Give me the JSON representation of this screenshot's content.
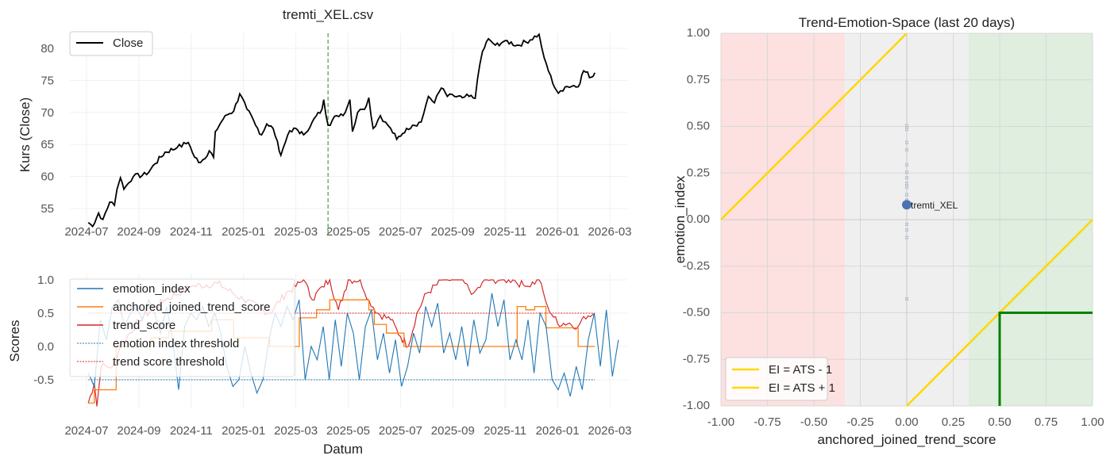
{
  "chart_data": [
    {
      "type": "line",
      "title": "tremti_XEL.csv",
      "xlabel": "",
      "ylabel": "Kurs (Close)",
      "x_ticks": [
        "2024-07",
        "2024-09",
        "2024-11",
        "2025-01",
        "2025-03",
        "2025-05",
        "2025-07",
        "2025-09",
        "2025-11",
        "2026-01",
        "2026-03"
      ],
      "y_ticks": [
        55,
        60,
        65,
        70,
        75,
        80
      ],
      "ylim": [
        51,
        83.5
      ],
      "grid": true,
      "legend": {
        "position": "top-left",
        "entries": [
          "Close"
        ]
      },
      "marker_line": {
        "date": "2025-04-08",
        "style": "dashed",
        "color": "#4c9a4c"
      },
      "series": [
        {
          "name": "Close",
          "color": "#000000",
          "points": [
            [
              "2024-07-03",
              52.8
            ],
            [
              "2024-07-08",
              52.2
            ],
            [
              "2024-07-15",
              54.3
            ],
            [
              "2024-07-20",
              53.3
            ],
            [
              "2024-07-28",
              56
            ],
            [
              "2024-08-03",
              55.5
            ],
            [
              "2024-08-06",
              58
            ],
            [
              "2024-08-10",
              59.8
            ],
            [
              "2024-08-14",
              58
            ],
            [
              "2024-08-25",
              60
            ],
            [
              "2024-09-10",
              60.3
            ],
            [
              "2024-09-20",
              62
            ],
            [
              "2024-10-01",
              63.8
            ],
            [
              "2024-10-15",
              64.5
            ],
            [
              "2024-10-28",
              65.3
            ],
            [
              "2024-11-05",
              63
            ],
            [
              "2024-11-12",
              62.2
            ],
            [
              "2024-11-22",
              64
            ],
            [
              "2024-11-27",
              63
            ],
            [
              "2024-11-29",
              67
            ],
            [
              "2024-12-10",
              69.5
            ],
            [
              "2024-12-20",
              70.2
            ],
            [
              "2024-12-27",
              72.9
            ],
            [
              "2025-01-05",
              70.5
            ],
            [
              "2025-01-15",
              68
            ],
            [
              "2025-01-22",
              66.5
            ],
            [
              "2025-01-28",
              68.2
            ],
            [
              "2025-02-05",
              67.5
            ],
            [
              "2025-02-10",
              65.5
            ],
            [
              "2025-02-14",
              63.3
            ],
            [
              "2025-02-22",
              66.5
            ],
            [
              "2025-03-01",
              67.5
            ],
            [
              "2025-03-10",
              66.5
            ],
            [
              "2025-03-20",
              68.5
            ],
            [
              "2025-04-01",
              70.5
            ],
            [
              "2025-04-03",
              72
            ],
            [
              "2025-04-08",
              68
            ],
            [
              "2025-04-18",
              69.5
            ],
            [
              "2025-04-28",
              70
            ],
            [
              "2025-05-03",
              72
            ],
            [
              "2025-05-06",
              67
            ],
            [
              "2025-05-12",
              70
            ],
            [
              "2025-05-18",
              70.5
            ],
            [
              "2025-05-22",
              71
            ],
            [
              "2025-05-25",
              72.3
            ],
            [
              "2025-05-30",
              67.5
            ],
            [
              "2025-06-08",
              69.5
            ],
            [
              "2025-06-14",
              68.5
            ],
            [
              "2025-06-20",
              67.5
            ],
            [
              "2025-06-27",
              65.8
            ],
            [
              "2025-07-08",
              67.5
            ],
            [
              "2025-07-15",
              68
            ],
            [
              "2025-07-25",
              68.5
            ],
            [
              "2025-08-03",
              72.5
            ],
            [
              "2025-08-10",
              71.5
            ],
            [
              "2025-08-18",
              73.8
            ],
            [
              "2025-08-25",
              72.5
            ],
            [
              "2025-09-03",
              72.5
            ],
            [
              "2025-09-12",
              72.3
            ],
            [
              "2025-09-20",
              72.5
            ],
            [
              "2025-09-27",
              72.2
            ],
            [
              "2025-10-02",
              77.5
            ],
            [
              "2025-10-05",
              79.5
            ],
            [
              "2025-10-12",
              81.5
            ],
            [
              "2025-10-20",
              80.5
            ],
            [
              "2025-11-01",
              81.2
            ],
            [
              "2025-11-15",
              80.5
            ],
            [
              "2025-11-25",
              81
            ],
            [
              "2025-12-10",
              82.2
            ],
            [
              "2025-12-16",
              78.5
            ],
            [
              "2025-12-26",
              74.5
            ],
            [
              "2026-01-02",
              73
            ],
            [
              "2026-01-10",
              74
            ],
            [
              "2026-01-20",
              74.2
            ],
            [
              "2026-01-25",
              74
            ],
            [
              "2026-02-01",
              76.5
            ],
            [
              "2026-02-10",
              75.5
            ],
            [
              "2026-02-14",
              76.2
            ]
          ]
        }
      ]
    },
    {
      "type": "line",
      "title": "",
      "xlabel": "Datum",
      "ylabel": "Scores",
      "x_ticks": [
        "2024-07",
        "2024-09",
        "2024-11",
        "2025-01",
        "2025-03",
        "2025-05",
        "2025-07",
        "2025-09",
        "2025-11",
        "2026-01",
        "2026-03"
      ],
      "y_ticks": [
        "-0.5",
        "0.0",
        "0.5",
        "1.0"
      ],
      "ylim": [
        -1.0,
        1.05
      ],
      "grid": true,
      "legend": {
        "position": "top-left",
        "entries": [
          "emotion_index",
          "anchored_joined_trend_score",
          "trend_score",
          "emotion index threshold",
          "trend score threshold"
        ]
      },
      "emotion_index": {
        "name": "emotion_index",
        "color": "#1f77b4",
        "start": "2024-07-03",
        "step_days": 7,
        "values": [
          -0.4,
          -0.6,
          0.4,
          0.1,
          0.6,
          0.7,
          0.3,
          0.5,
          0.6,
          0.4,
          0.7,
          0.5,
          0.2,
          0.6,
          0.1,
          -0.65,
          0.3,
          0.5,
          0.4,
          0.6,
          0.3,
          0.5,
          0.2,
          -0.3,
          -0.6,
          -0.5,
          0.0,
          -0.4,
          -0.7,
          -0.5,
          0.1,
          0.5,
          0.3,
          0.6,
          0.4,
          0.7,
          -0.5,
          0.0,
          -0.2,
          0.3,
          -0.5,
          0.4,
          -0.3,
          0.5,
          0.2,
          -0.5,
          0.3,
          0.55,
          -0.2,
          0.2,
          -0.4,
          0.1,
          -0.6,
          -0.3,
          0.2,
          -0.1,
          0.6,
          0.3,
          0.65,
          -0.1,
          0.2,
          -0.2,
          0.3,
          -0.3,
          0.4,
          -0.1,
          0.1,
          0.8,
          0.3,
          0.7,
          -0.2,
          0.1,
          -0.2,
          0.4,
          -0.4,
          0.5,
          0.3,
          -0.5,
          -0.65,
          -0.4,
          -0.75,
          -0.3,
          -0.65,
          0.1,
          0.5,
          -0.3,
          0.55,
          -0.45,
          0.1
        ]
      },
      "anchored_joined_trend_score": {
        "name": "anchored_joined_trend_score",
        "color": "#ff7f0e",
        "step_points": [
          [
            "2024-07-03",
            -0.85
          ],
          [
            "2024-07-10",
            -0.65
          ],
          [
            "2024-08-05",
            0.0
          ],
          [
            "2024-09-15",
            0.13
          ],
          [
            "2024-10-05",
            0.23
          ],
          [
            "2024-11-25",
            0.4
          ],
          [
            "2024-12-20",
            0.13
          ],
          [
            "2025-02-01",
            0.0
          ],
          [
            "2025-03-05",
            0.43
          ],
          [
            "2025-03-25",
            0.55
          ],
          [
            "2025-04-10",
            0.7
          ],
          [
            "2025-05-25",
            0.55
          ],
          [
            "2025-06-01",
            0.33
          ],
          [
            "2025-06-15",
            0.2
          ],
          [
            "2025-07-05",
            0.0
          ],
          [
            "2025-11-15",
            0.6
          ],
          [
            "2025-11-25",
            0.55
          ],
          [
            "2025-12-05",
            0.6
          ],
          [
            "2025-12-18",
            0.28
          ],
          [
            "2026-01-25",
            0.0
          ],
          [
            "2026-02-14",
            0.0
          ]
        ]
      },
      "trend_score": {
        "name": "trend_score",
        "color": "#d62728",
        "points": [
          [
            "2024-07-03",
            -0.85
          ],
          [
            "2024-07-10",
            -0.55
          ],
          [
            "2024-07-13",
            -0.9
          ],
          [
            "2024-07-18",
            -0.3
          ],
          [
            "2024-08-01",
            -0.3
          ],
          [
            "2024-08-10",
            0.0
          ],
          [
            "2024-09-01",
            0.4
          ],
          [
            "2024-10-01",
            0.7
          ],
          [
            "2024-11-01",
            0.9
          ],
          [
            "2024-12-01",
            0.95
          ],
          [
            "2025-01-01",
            0.7
          ],
          [
            "2025-02-01",
            0.5
          ],
          [
            "2025-02-20",
            0.8
          ],
          [
            "2025-03-01",
            0.9
          ],
          [
            "2025-03-10",
            1.0
          ],
          [
            "2025-03-20",
            0.7
          ],
          [
            "2025-04-01",
            0.9
          ],
          [
            "2025-04-10",
            1.0
          ],
          [
            "2025-04-20",
            0.55
          ],
          [
            "2025-05-01",
            1.0
          ],
          [
            "2025-05-15",
            1.0
          ],
          [
            "2025-05-25",
            0.7
          ],
          [
            "2025-06-05",
            0.5
          ],
          [
            "2025-06-20",
            0.4
          ],
          [
            "2025-07-01",
            0.15
          ],
          [
            "2025-07-10",
            0.0
          ],
          [
            "2025-07-20",
            0.5
          ],
          [
            "2025-08-01",
            0.8
          ],
          [
            "2025-08-20",
            1.0
          ],
          [
            "2025-09-10",
            1.0
          ],
          [
            "2025-09-25",
            0.8
          ],
          [
            "2025-10-10",
            1.0
          ],
          [
            "2025-11-10",
            1.0
          ],
          [
            "2025-11-25",
            0.9
          ],
          [
            "2025-12-10",
            1.0
          ],
          [
            "2025-12-20",
            0.6
          ],
          [
            "2026-01-01",
            0.35
          ],
          [
            "2026-01-15",
            0.35
          ],
          [
            "2026-01-25",
            0.3
          ],
          [
            "2026-02-01",
            0.45
          ],
          [
            "2026-02-14",
            0.5
          ]
        ]
      },
      "thresholds": [
        {
          "name": "emotion index threshold",
          "value": -0.5,
          "color": "#1f77b4"
        },
        {
          "name": "trend score threshold",
          "value": 0.5,
          "color": "#d62728"
        }
      ]
    },
    {
      "type": "scatter",
      "title": "Trend-Emotion-Space (last 20 days)",
      "xlabel": "anchored_joined_trend_score",
      "ylabel": "emotion_index",
      "xlim": [
        -1,
        1
      ],
      "ylim": [
        -1,
        1
      ],
      "x_ticks": [
        "-1.00",
        "-0.75",
        "-0.50",
        "-0.25",
        "0.00",
        "0.25",
        "0.50",
        "0.75",
        "1.00"
      ],
      "y_ticks": [
        "-1.00",
        "-0.75",
        "-0.50",
        "-0.25",
        "0.00",
        "0.25",
        "0.50",
        "0.75",
        "1.00"
      ],
      "regions": [
        {
          "range": [
            -1,
            -0.333
          ],
          "color": "#fde0e0"
        },
        {
          "range": [
            -0.333,
            0.333
          ],
          "color": "#efefef"
        },
        {
          "range": [
            0.333,
            1
          ],
          "color": "#dfeedf"
        }
      ],
      "trail_points": [
        [
          0,
          0.5
        ],
        [
          0,
          0.48
        ],
        [
          0,
          0.41
        ],
        [
          0,
          0.37
        ],
        [
          0,
          0.29
        ],
        [
          0,
          0.25
        ],
        [
          0,
          0.22
        ],
        [
          0,
          0.19
        ],
        [
          0,
          0.17
        ],
        [
          0,
          0.13
        ],
        [
          0,
          0.1
        ],
        [
          0,
          -0.03
        ],
        [
          0,
          -0.06
        ],
        [
          0,
          -0.1
        ],
        [
          0,
          -0.43
        ]
      ],
      "current_point": {
        "label": "tremti_XEL",
        "x": 0.0,
        "y": 0.08,
        "color": "#4c72b0"
      },
      "lines": [
        {
          "name": "EI = ATS - 1",
          "color": "#ffd700",
          "slope": 1,
          "intercept": -1
        },
        {
          "name": "EI = ATS + 1",
          "color": "#ffd700",
          "slope": 1,
          "intercept": 1
        }
      ],
      "box": {
        "color": "#008000",
        "points": [
          [
            0.5,
            -1
          ],
          [
            0.5,
            -0.5
          ],
          [
            1,
            -0.5
          ]
        ]
      },
      "legend": {
        "position": "bottom-left",
        "entries": [
          "EI = ATS - 1",
          "EI = ATS + 1"
        ]
      }
    }
  ]
}
